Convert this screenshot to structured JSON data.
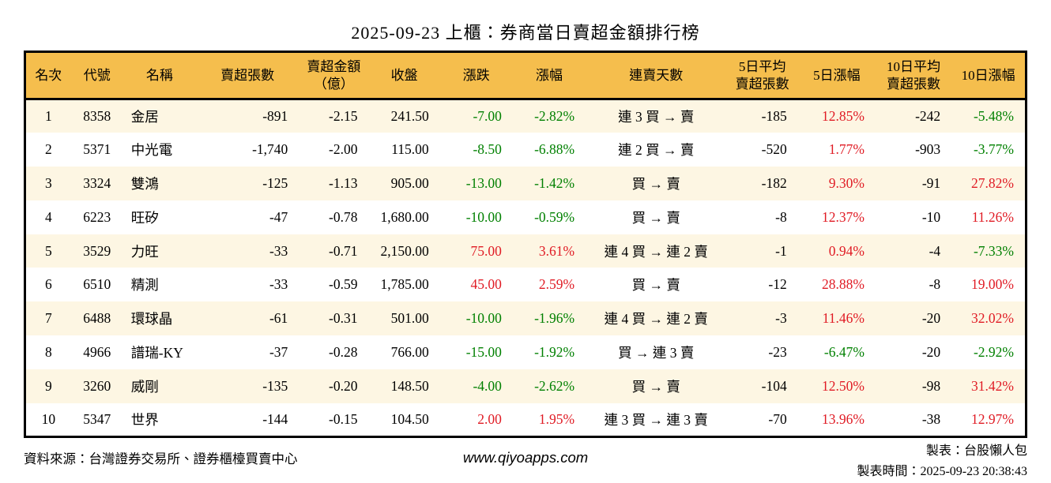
{
  "title": "2025-09-23 上櫃：券商當日賣超金額排行榜",
  "colors": {
    "green": "#008000",
    "red": "#e01b24",
    "header_bg": "#f5be4d",
    "row_alt_bg": "#fdf6e3",
    "border": "#000000"
  },
  "table": {
    "columns": [
      "名次",
      "代號",
      "名稱",
      "賣超張數",
      "賣超金額\n（億）",
      "收盤",
      "漲跌",
      "漲幅",
      "連賣天數",
      "5日平均\n賣超張數",
      "5日漲幅",
      "10日平均\n賣超張數",
      "10日漲幅"
    ],
    "rows": [
      {
        "rank": "1",
        "code": "8358",
        "name": "金居",
        "sell_vol": "-891",
        "sell_amt": "-2.15",
        "close": "241.50",
        "chg": "-7.00",
        "chg_color": "green",
        "pct": "-2.82%",
        "pct_color": "green",
        "streak": "連 3 買 → 賣",
        "avg5": "-185",
        "pct5": "12.85%",
        "pct5_color": "red",
        "avg10": "-242",
        "pct10": "-5.48%",
        "pct10_color": "green"
      },
      {
        "rank": "2",
        "code": "5371",
        "name": "中光電",
        "sell_vol": "-1,740",
        "sell_amt": "-2.00",
        "close": "115.00",
        "chg": "-8.50",
        "chg_color": "green",
        "pct": "-6.88%",
        "pct_color": "green",
        "streak": "連 2 買 → 賣",
        "avg5": "-520",
        "pct5": "1.77%",
        "pct5_color": "red",
        "avg10": "-903",
        "pct10": "-3.77%",
        "pct10_color": "green"
      },
      {
        "rank": "3",
        "code": "3324",
        "name": "雙鴻",
        "sell_vol": "-125",
        "sell_amt": "-1.13",
        "close": "905.00",
        "chg": "-13.00",
        "chg_color": "green",
        "pct": "-1.42%",
        "pct_color": "green",
        "streak": "買 → 賣",
        "avg5": "-182",
        "pct5": "9.30%",
        "pct5_color": "red",
        "avg10": "-91",
        "pct10": "27.82%",
        "pct10_color": "red"
      },
      {
        "rank": "4",
        "code": "6223",
        "name": "旺矽",
        "sell_vol": "-47",
        "sell_amt": "-0.78",
        "close": "1,680.00",
        "chg": "-10.00",
        "chg_color": "green",
        "pct": "-0.59%",
        "pct_color": "green",
        "streak": "買 → 賣",
        "avg5": "-8",
        "pct5": "12.37%",
        "pct5_color": "red",
        "avg10": "-10",
        "pct10": "11.26%",
        "pct10_color": "red"
      },
      {
        "rank": "5",
        "code": "3529",
        "name": "力旺",
        "sell_vol": "-33",
        "sell_amt": "-0.71",
        "close": "2,150.00",
        "chg": "75.00",
        "chg_color": "red",
        "pct": "3.61%",
        "pct_color": "red",
        "streak": "連 4 買 → 連 2 賣",
        "avg5": "-1",
        "pct5": "0.94%",
        "pct5_color": "red",
        "avg10": "-4",
        "pct10": "-7.33%",
        "pct10_color": "green"
      },
      {
        "rank": "6",
        "code": "6510",
        "name": "精測",
        "sell_vol": "-33",
        "sell_amt": "-0.59",
        "close": "1,785.00",
        "chg": "45.00",
        "chg_color": "red",
        "pct": "2.59%",
        "pct_color": "red",
        "streak": "買 → 賣",
        "avg5": "-12",
        "pct5": "28.88%",
        "pct5_color": "red",
        "avg10": "-8",
        "pct10": "19.00%",
        "pct10_color": "red"
      },
      {
        "rank": "7",
        "code": "6488",
        "name": "環球晶",
        "sell_vol": "-61",
        "sell_amt": "-0.31",
        "close": "501.00",
        "chg": "-10.00",
        "chg_color": "green",
        "pct": "-1.96%",
        "pct_color": "green",
        "streak": "連 4 買 → 連 2 賣",
        "avg5": "-3",
        "pct5": "11.46%",
        "pct5_color": "red",
        "avg10": "-20",
        "pct10": "32.02%",
        "pct10_color": "red"
      },
      {
        "rank": "8",
        "code": "4966",
        "name": "譜瑞-KY",
        "sell_vol": "-37",
        "sell_amt": "-0.28",
        "close": "766.00",
        "chg": "-15.00",
        "chg_color": "green",
        "pct": "-1.92%",
        "pct_color": "green",
        "streak": "買 → 連 3 賣",
        "avg5": "-23",
        "pct5": "-6.47%",
        "pct5_color": "green",
        "avg10": "-20",
        "pct10": "-2.92%",
        "pct10_color": "green"
      },
      {
        "rank": "9",
        "code": "3260",
        "name": "威剛",
        "sell_vol": "-135",
        "sell_amt": "-0.20",
        "close": "148.50",
        "chg": "-4.00",
        "chg_color": "green",
        "pct": "-2.62%",
        "pct_color": "green",
        "streak": "買 → 賣",
        "avg5": "-104",
        "pct5": "12.50%",
        "pct5_color": "red",
        "avg10": "-98",
        "pct10": "31.42%",
        "pct10_color": "red"
      },
      {
        "rank": "10",
        "code": "5347",
        "name": "世界",
        "sell_vol": "-144",
        "sell_amt": "-0.15",
        "close": "104.50",
        "chg": "2.00",
        "chg_color": "red",
        "pct": "1.95%",
        "pct_color": "red",
        "streak": "連 3 買 → 連 3 賣",
        "avg5": "-70",
        "pct5": "13.96%",
        "pct5_color": "red",
        "avg10": "-38",
        "pct10": "12.97%",
        "pct10_color": "red"
      }
    ]
  },
  "footer": {
    "source": "資料來源：台灣證券交易所、證券櫃檯買賣中心",
    "site": "www.qiyoapps.com",
    "maker": "製表：台股懶人包",
    "time": "製表時間：2025-09-23 20:38:43"
  }
}
